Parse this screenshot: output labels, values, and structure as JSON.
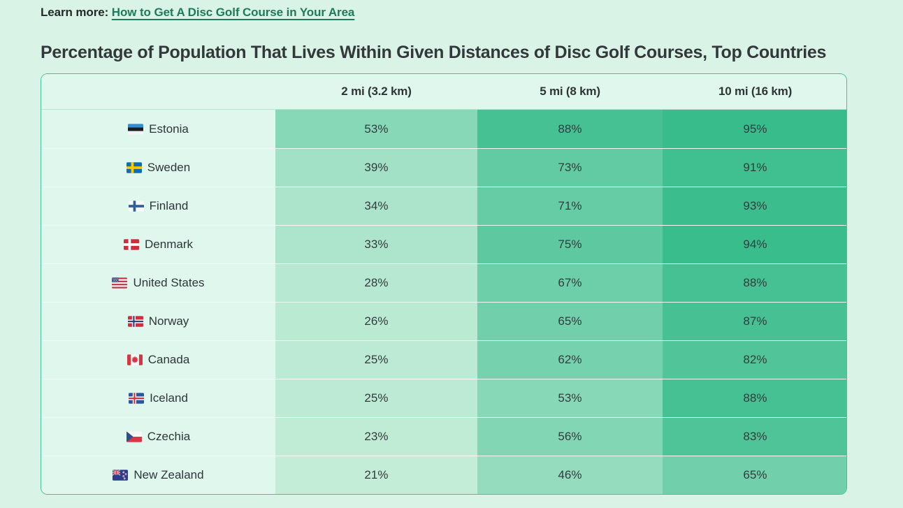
{
  "learn_more": {
    "label": "Learn more:",
    "link_text": "How to Get A Disc Golf Course in Your Area",
    "link_color": "#1f7a5c"
  },
  "heading": {
    "text": "Percentage of Population That Lives Within Given Distances of Disc Golf Courses, Top Countries"
  },
  "chart_data": {
    "type": "heatmap",
    "title": "Percentage of Population That Lives Within Given Distances of Disc Golf Courses, Top Countries",
    "columns": [
      "2 mi (3.2 km)",
      "5 mi (8 km)",
      "10 mi (16 km)"
    ],
    "value_format": "percent",
    "rows": [
      {
        "country": "Estonia",
        "flag": "estonia",
        "values": [
          53,
          88,
          95
        ]
      },
      {
        "country": "Sweden",
        "flag": "sweden",
        "values": [
          39,
          73,
          91
        ]
      },
      {
        "country": "Finland",
        "flag": "finland",
        "values": [
          34,
          71,
          93
        ]
      },
      {
        "country": "Denmark",
        "flag": "denmark",
        "values": [
          33,
          75,
          94
        ]
      },
      {
        "country": "United States",
        "flag": "usa",
        "values": [
          28,
          67,
          88
        ]
      },
      {
        "country": "Norway",
        "flag": "norway",
        "values": [
          26,
          65,
          87
        ]
      },
      {
        "country": "Canada",
        "flag": "canada",
        "values": [
          25,
          62,
          82
        ]
      },
      {
        "country": "Iceland",
        "flag": "iceland",
        "values": [
          25,
          53,
          88
        ]
      },
      {
        "country": "Czechia",
        "flag": "czechia",
        "values": [
          23,
          56,
          83
        ]
      },
      {
        "country": "New Zealand",
        "flag": "new-zealand",
        "values": [
          21,
          46,
          65
        ]
      }
    ],
    "color_scale": {
      "min_value": 21,
      "max_value": 95,
      "min_color": "#c4edd8",
      "max_color": "#38bc8c"
    }
  }
}
